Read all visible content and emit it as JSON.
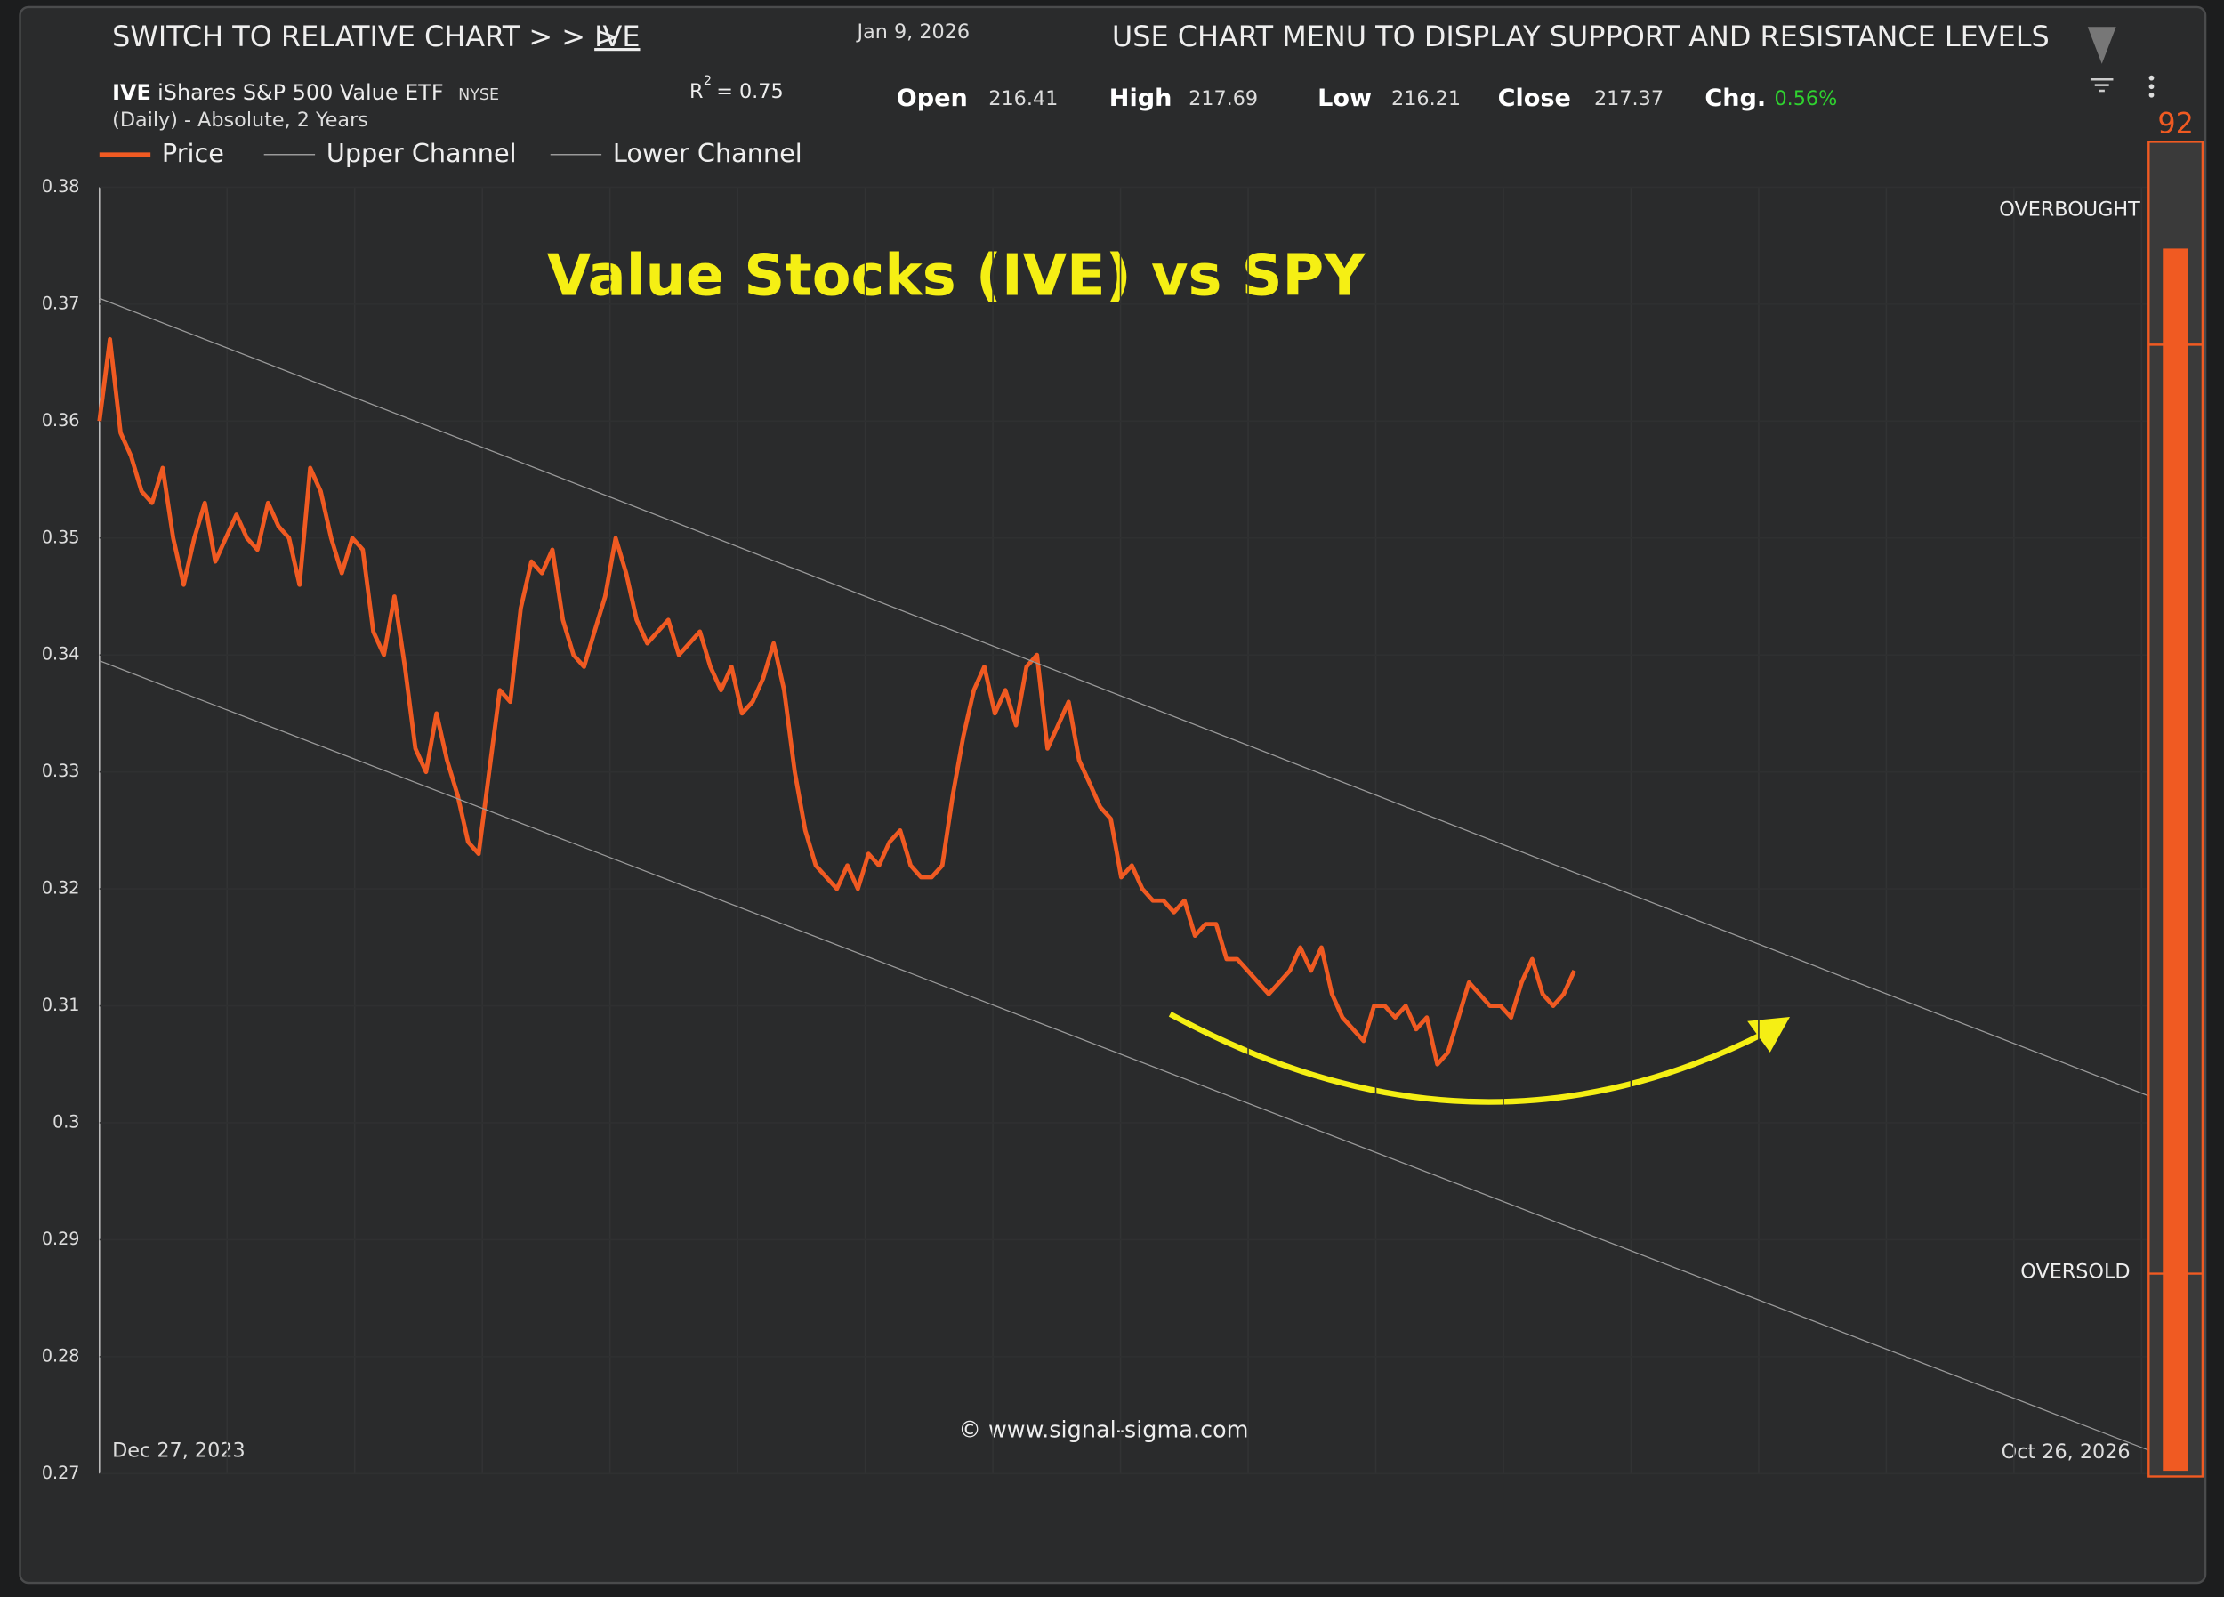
{
  "header": {
    "switch_text": "SWITCH TO RELATIVE CHART > > >",
    "switch_symbol": "IVE",
    "date": "Jan 9, 2026",
    "menu_text": "USE CHART MENU TO DISPLAY SUPPORT AND RESISTANCE LEVELS",
    "symbol": "IVE",
    "name": "iShares S&P 500 Value ETF",
    "exchange": "NYSE",
    "period": "(Daily) - Absolute, 2 Years",
    "r2_label": "R",
    "r2_exp": "2",
    "r2_value": "=  0.75",
    "stats": [
      {
        "label": "Open",
        "value": "216.41"
      },
      {
        "label": "High",
        "value": "217.69"
      },
      {
        "label": "Low",
        "value": "216.21"
      },
      {
        "label": "Close",
        "value": "217.37"
      },
      {
        "label": "Chg.",
        "value": "0.56%"
      }
    ]
  },
  "chart_data": {
    "type": "line",
    "title": "Value Stocks (IVE) vs SPY",
    "watermark": "© www.signal-sigma.com",
    "x_labels": [
      "Dec 27, 2023",
      "Oct 26, 2026"
    ],
    "ylim": [
      0.27,
      0.38
    ],
    "yticks": [
      0.27,
      0.28,
      0.29,
      0.3,
      0.31,
      0.32,
      0.33,
      0.34,
      0.35,
      0.36,
      0.37,
      0.38
    ],
    "series": [
      {
        "name": "Price",
        "color": "#f05a22",
        "values": [
          0.36,
          0.367,
          0.359,
          0.357,
          0.354,
          0.353,
          0.356,
          0.35,
          0.346,
          0.35,
          0.353,
          0.348,
          0.35,
          0.352,
          0.35,
          0.349,
          0.353,
          0.351,
          0.35,
          0.346,
          0.356,
          0.354,
          0.35,
          0.347,
          0.35,
          0.349,
          0.342,
          0.34,
          0.345,
          0.339,
          0.332,
          0.33,
          0.335,
          0.331,
          0.328,
          0.324,
          0.323,
          0.33,
          0.337,
          0.336,
          0.344,
          0.348,
          0.347,
          0.349,
          0.343,
          0.34,
          0.339,
          0.342,
          0.345,
          0.35,
          0.347,
          0.343,
          0.341,
          0.342,
          0.343,
          0.34,
          0.341,
          0.342,
          0.339,
          0.337,
          0.339,
          0.335,
          0.336,
          0.338,
          0.341,
          0.337,
          0.33,
          0.325,
          0.322,
          0.321,
          0.32,
          0.322,
          0.32,
          0.323,
          0.322,
          0.324,
          0.325,
          0.322,
          0.321,
          0.321,
          0.322,
          0.328,
          0.333,
          0.337,
          0.339,
          0.335,
          0.337,
          0.334,
          0.339,
          0.34,
          0.332,
          0.334,
          0.336,
          0.331,
          0.329,
          0.327,
          0.326,
          0.321,
          0.322,
          0.32,
          0.319,
          0.319,
          0.318,
          0.319,
          0.316,
          0.317,
          0.317,
          0.314,
          0.314,
          0.313,
          0.312,
          0.311,
          0.312,
          0.313,
          0.315,
          0.313,
          0.315,
          0.311,
          0.309,
          0.308,
          0.307,
          0.31,
          0.31,
          0.309,
          0.31,
          0.308,
          0.309,
          0.305,
          0.306,
          0.309,
          0.312,
          0.311,
          0.31,
          0.31,
          0.309,
          0.312,
          0.314,
          0.311,
          0.31,
          0.311,
          0.313
        ]
      },
      {
        "name": "Upper Channel",
        "color": "#9a9a9a",
        "values": [
          0.3705,
          0.3023
        ]
      },
      {
        "name": "Lower Channel",
        "color": "#9a9a9a",
        "values": [
          0.3395,
          0.272
        ]
      }
    ],
    "gauge": {
      "value": 92,
      "color": "#f05a22",
      "overbought_label": "OVERBOUGHT",
      "oversold_label": "OVERSOLD"
    }
  }
}
